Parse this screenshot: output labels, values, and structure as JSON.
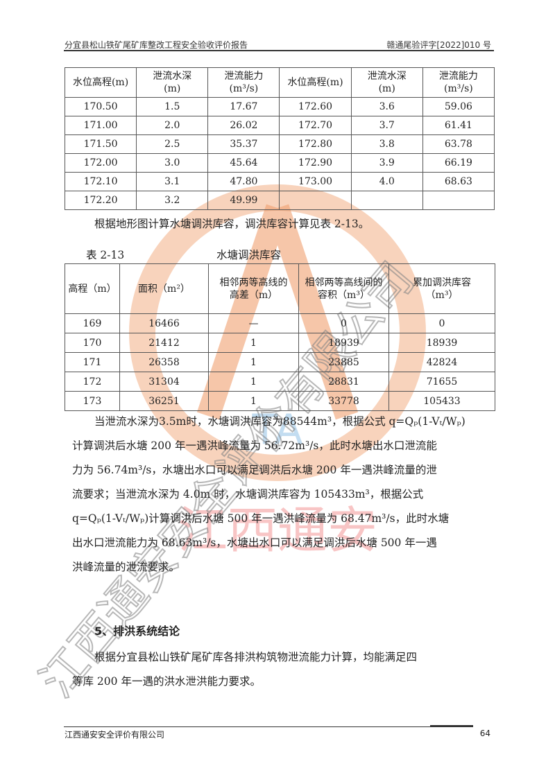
{
  "header": {
    "left": "分宜县松山铁矿尾矿库整改工程安全验收评价报告",
    "right": "赣通尾验评字[2022]010 号"
  },
  "table1": {
    "headers": [
      "水位高程(m)",
      "泄流水深",
      "(m)",
      "泄流能力",
      "(m³/s)",
      "水位高程(m)",
      "泄流水深",
      "(m)",
      "泄流能力",
      "(m³/s)"
    ],
    "rows": [
      [
        "170.50",
        "1.5",
        "17.67",
        "172.60",
        "3.6",
        "59.06"
      ],
      [
        "171.00",
        "2.0",
        "26.02",
        "172.70",
        "3.7",
        "61.41"
      ],
      [
        "171.50",
        "2.5",
        "35.37",
        "172.80",
        "3.8",
        "63.78"
      ],
      [
        "172.00",
        "3.0",
        "45.64",
        "172.90",
        "3.9",
        "66.19"
      ],
      [
        "172.10",
        "3.1",
        "47.80",
        "173.00",
        "4.0",
        "68.63"
      ],
      [
        "172.20",
        "3.2",
        "49.99",
        "",
        "",
        ""
      ]
    ]
  },
  "para1": "根据地形图计算水塘调洪库容，调洪库容计算见表 2-13。",
  "table2": {
    "caption_no": "表 2-13",
    "caption_title": "水塘调洪库容",
    "headers": [
      "高程（m）",
      "面积（m²）",
      "相邻两等高线的",
      "高差（m）",
      "相邻两等高线间的",
      "容积（m³）",
      "累加调洪库容",
      "（m³）"
    ],
    "rows": [
      [
        "169",
        "16466",
        "—",
        "0",
        "0"
      ],
      [
        "170",
        "21412",
        "1",
        "18939",
        "18939"
      ],
      [
        "171",
        "26358",
        "1",
        "23885",
        "42824"
      ],
      [
        "172",
        "31304",
        "1",
        "28831",
        "71655"
      ],
      [
        "173",
        "36251",
        "1",
        "33778",
        "105433"
      ]
    ]
  },
  "para2": [
    "当泄流水深为3.5m时，水塘调洪库容为88544m³，根据公式 q=Qₚ(1-Vₜ/Wₚ)",
    "计算调洪后水塘 200 年一遇洪峰流量为 56.72m³/s，此时水塘出水口泄流能",
    "力为 56.74m³/s，水塘出水口可以满足调洪后水塘 200 年一遇洪峰流量的泄",
    "流要求；当泄流水深为 4.0m 时，水塘调洪库容为 105433m³，根据公式",
    "q=Qₚ(1-Vₜ/Wₚ)计算调洪后水塘 500 年一遇洪峰流量为 68.47m³/s，此时水塘",
    "出水口泄流能力为 68.63m³/s，水塘出水口可以满足调洪后水塘 500 年一遇",
    "洪峰流量的泄流要求。"
  ],
  "section5": "5、排洪系统结论",
  "para3": [
    "根据分宜县松山铁矿尾矿库各排洪构筑物泄流能力计算，均能满足四",
    "等库 200 年一遇的洪水泄洪能力要求。"
  ],
  "footer": {
    "left": "江西通安安全评价有限公司",
    "page": "64"
  },
  "watermark": {
    "diagonal_text": "江西通安安全评价有限公司",
    "seal_text": "江西通安",
    "colors": {
      "ring": "#f2a27a",
      "red": "#e8474a",
      "gray": "#9a9a9a",
      "blue": "#9cc8e8"
    }
  }
}
